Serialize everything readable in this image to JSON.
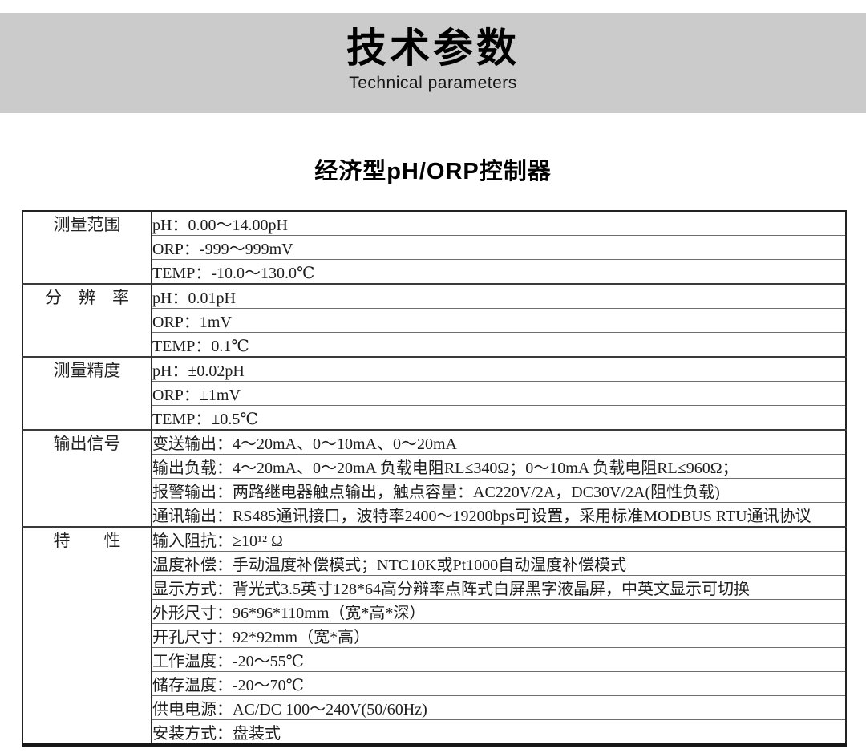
{
  "header": {
    "title_cn": "技术参数",
    "title_en": "Technical parameters",
    "band_color": "#cbcbcb"
  },
  "product_title": "经济型pH/ORP控制器",
  "spec_table": {
    "groups": [
      {
        "label": "测量范围",
        "rows": [
          "pH：0.00～14.00pH",
          "ORP：-999～999mV",
          "TEMP：-10.0～130.0℃"
        ]
      },
      {
        "label": "分　辨　率",
        "rows": [
          "pH：0.01pH",
          "ORP：1mV",
          "TEMP：0.1℃"
        ]
      },
      {
        "label": "测量精度",
        "rows": [
          "pH：±0.02pH",
          "ORP：±1mV",
          "TEMP：±0.5℃"
        ]
      },
      {
        "label": "输出信号",
        "rows": [
          "变送输出：4～20mA、0～10mA、0～20mA",
          "输出负载：4～20mA、0～20mA 负载电阻RL≤340Ω；0～10mA 负载电阻RL≤960Ω；",
          "报警输出：两路继电器触点输出，触点容量：AC220V/2A，DC30V/2A(阻性负载)",
          "通讯输出：RS485通讯接口，波特率2400～19200bps可设置，采用标准MODBUS RTU通讯协议"
        ]
      },
      {
        "label": "特　　性",
        "rows": [
          "输入阻抗：≥10¹² Ω",
          "温度补偿：手动温度补偿模式；NTC10K或Pt1000自动温度补偿模式",
          "显示方式：背光式3.5英寸128*64高分辩率点阵式白屏黑字液晶屏，中英文显示可切换",
          "外形尺寸：96*96*110mm（宽*高*深）",
          "开孔尺寸：92*92mm（宽*高）",
          "工作温度：-20～55℃",
          "储存温度：-20～70℃",
          "供电电源：AC/DC 100～240V(50/60Hz)",
          "安装方式：盘装式"
        ]
      }
    ]
  }
}
